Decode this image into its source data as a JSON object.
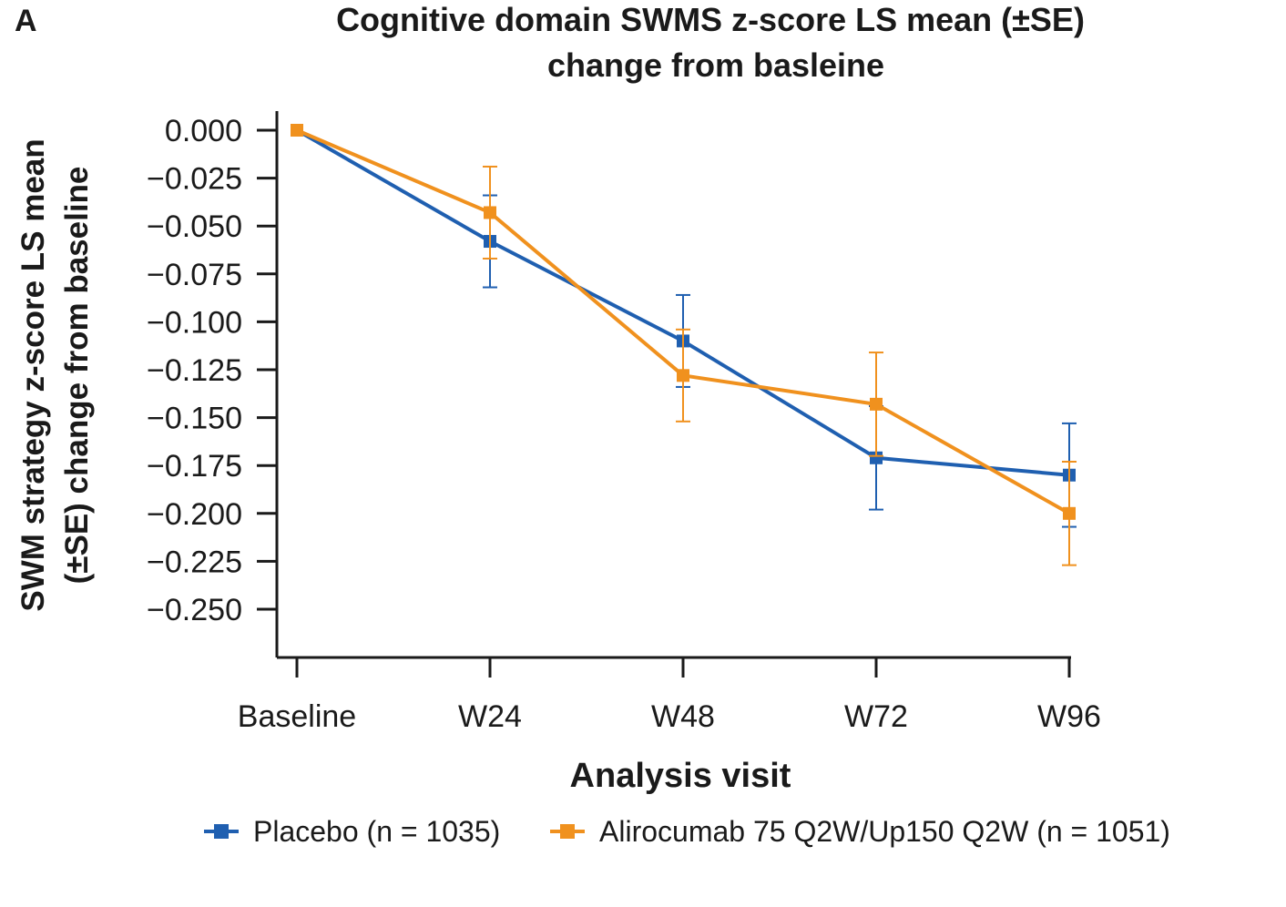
{
  "chart_data": {
    "type": "line",
    "panel_label": "A",
    "title_lines": [
      "Cognitive domain SWMS z-score LS mean (±SE)",
      "change from basleine"
    ],
    "xlabel": "Analysis visit",
    "ylabel_lines": [
      "SWM strategy z-score LS mean",
      "(±SE) change from baseline"
    ],
    "categories": [
      "Baseline",
      "W24",
      "W48",
      "W72",
      "W96"
    ],
    "ylim": [
      -0.275,
      0.0
    ],
    "yticks": [
      0.0,
      -0.025,
      -0.05,
      -0.075,
      -0.1,
      -0.125,
      -0.15,
      -0.175,
      -0.2,
      -0.225,
      -0.25
    ],
    "ytick_labels": [
      "0.000",
      "−0.025",
      "−0.050",
      "−0.075",
      "−0.100",
      "−0.125",
      "−0.150",
      "−0.175",
      "−0.200",
      "−0.225",
      "−0.250"
    ],
    "series": [
      {
        "name": "Placebo (n = 1035)",
        "color": "#1f5fb0",
        "values": [
          0.0,
          -0.058,
          -0.11,
          -0.171,
          -0.18
        ],
        "se": [
          0.0,
          0.024,
          0.024,
          0.027,
          0.027
        ]
      },
      {
        "name": "Alirocumab 75 Q2W/Up150 Q2W (n = 1051)",
        "color": "#f0911e",
        "values": [
          0.0,
          -0.043,
          -0.128,
          -0.143,
          -0.2
        ],
        "se": [
          0.0,
          0.024,
          0.024,
          0.027,
          0.027
        ]
      }
    ],
    "legend_position": "bottom"
  }
}
